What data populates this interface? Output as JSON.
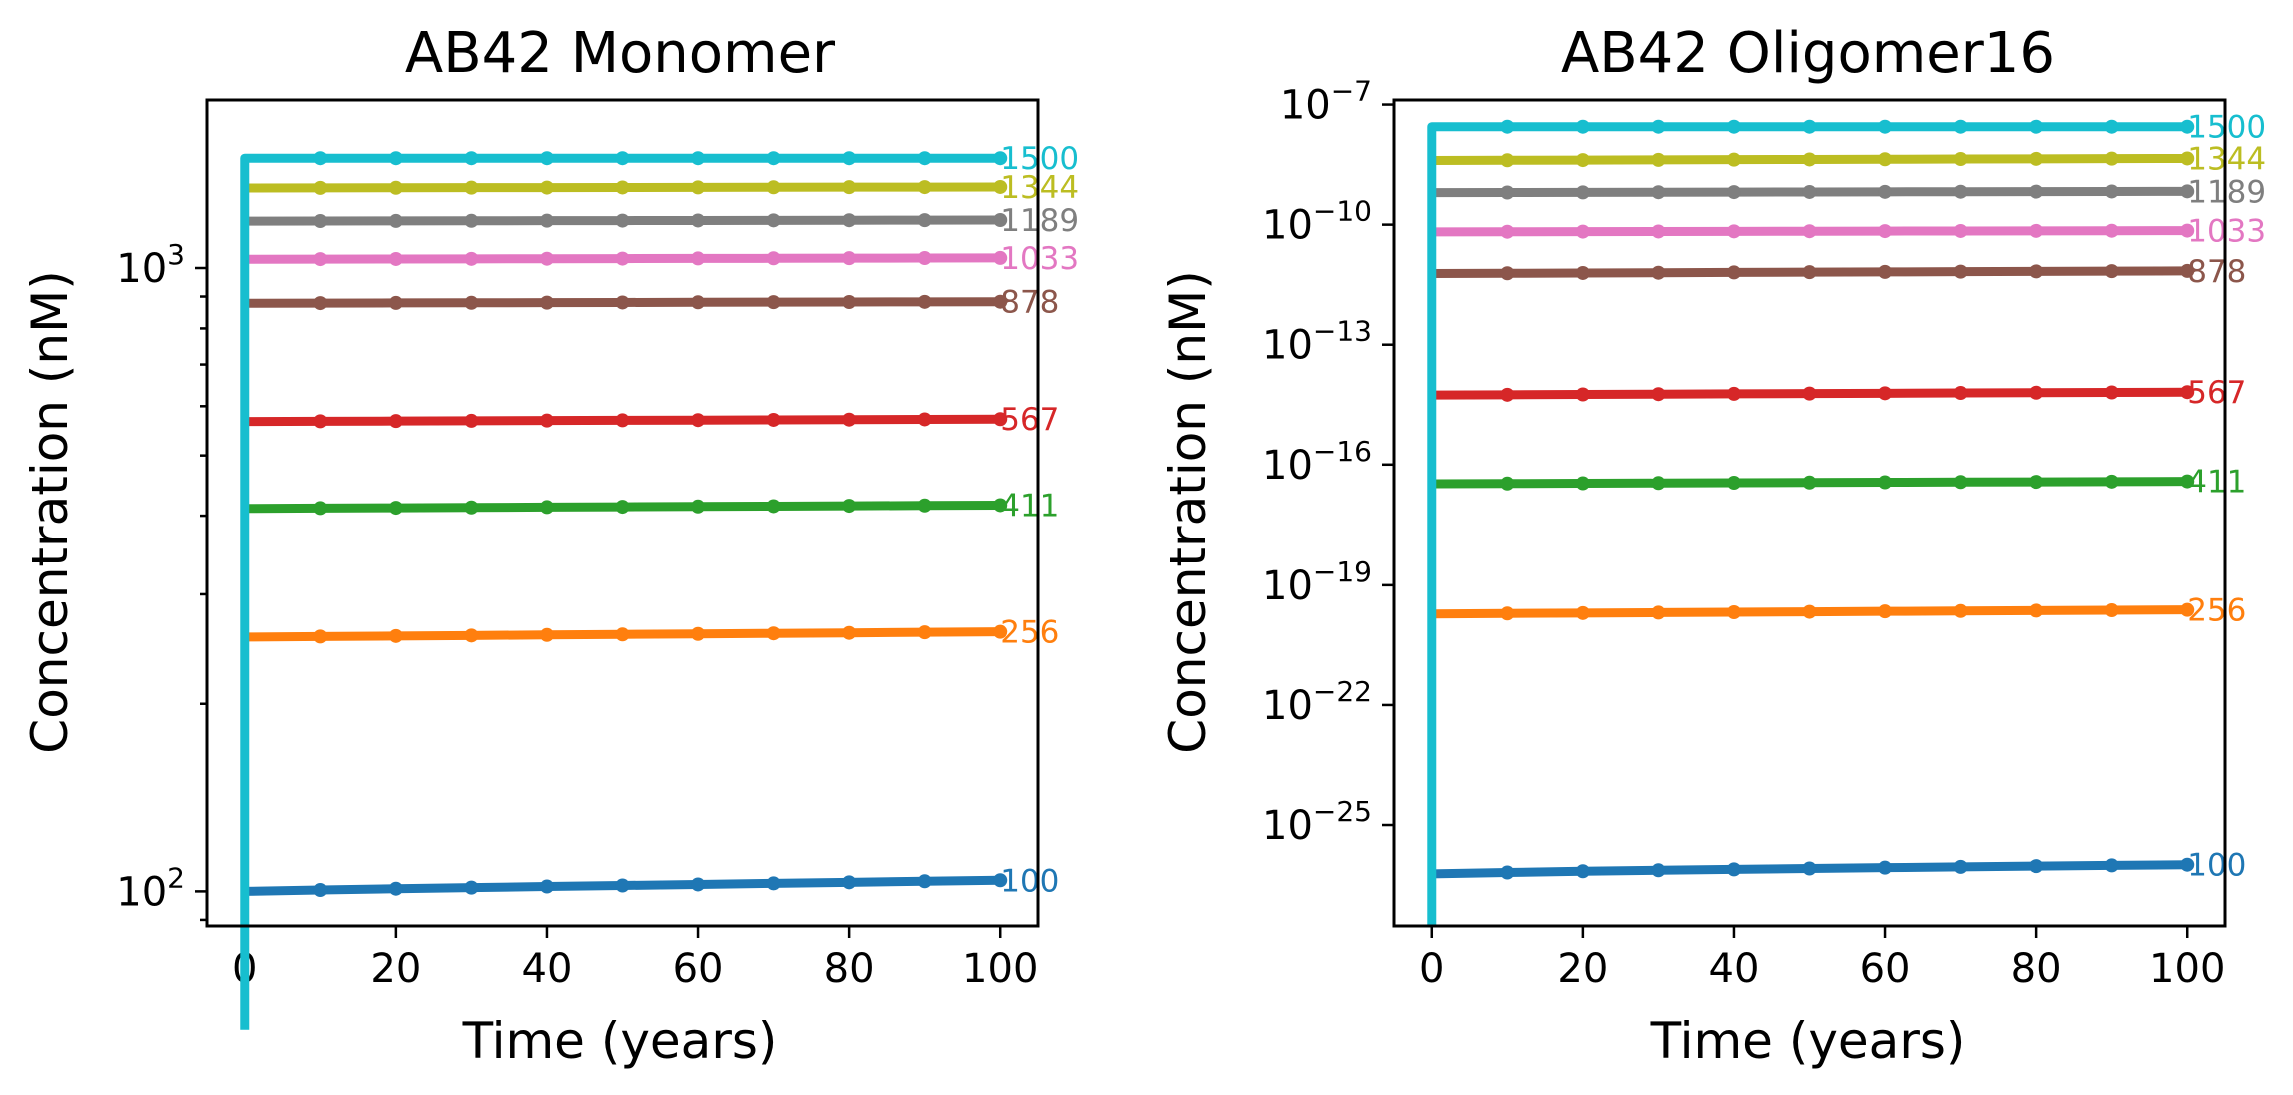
{
  "chart_data": [
    {
      "type": "line",
      "title": "AB42 Monomer",
      "xlabel": "Time (years)",
      "ylabel": "Concentration (nM)",
      "xlim": [
        -5,
        105
      ],
      "ylim": [
        88,
        1860
      ],
      "yscale": "log",
      "xticks": [
        0,
        20,
        40,
        60,
        80,
        100
      ],
      "yticks": [
        {
          "value": 100,
          "base": "10",
          "exp": "2"
        },
        {
          "value": 1000,
          "base": "10",
          "exp": "3"
        }
      ],
      "grid": false,
      "series": [
        {
          "label": "100",
          "color": "#1f77b4",
          "x": [
            0,
            10,
            20,
            30,
            40,
            50,
            60,
            70,
            80,
            90,
            100
          ],
          "y": [
            100,
            100.5,
            101,
            101.4,
            101.8,
            102.2,
            102.6,
            103,
            103.4,
            103.8,
            104.2
          ]
        },
        {
          "label": "256",
          "color": "#ff7f0e",
          "x": [
            0,
            10,
            20,
            30,
            40,
            50,
            60,
            70,
            80,
            90,
            100
          ],
          "y": [
            256,
            256.5,
            257,
            257.5,
            258,
            258.5,
            259,
            259.5,
            260,
            260.5,
            261
          ]
        },
        {
          "label": "411",
          "color": "#2ca02c",
          "x": [
            0,
            10,
            20,
            30,
            40,
            50,
            60,
            70,
            80,
            90,
            100
          ],
          "y": [
            411,
            411.5,
            412,
            412.5,
            413,
            413.5,
            414,
            414.5,
            415,
            415.5,
            416
          ]
        },
        {
          "label": "567",
          "color": "#d62728",
          "x": [
            0,
            10,
            20,
            30,
            40,
            50,
            60,
            70,
            80,
            90,
            100
          ],
          "y": [
            567,
            567.5,
            568,
            568.5,
            569,
            569.5,
            570,
            570.5,
            571,
            571.5,
            572
          ]
        },
        {
          "label": "878",
          "color": "#8c564b",
          "x": [
            0,
            10,
            20,
            30,
            40,
            50,
            60,
            70,
            80,
            90,
            100
          ],
          "y": [
            878,
            878.5,
            879,
            879.5,
            880,
            880.5,
            881,
            881.5,
            882,
            882.5,
            883
          ]
        },
        {
          "label": "1033",
          "color": "#e377c2",
          "x": [
            0,
            10,
            20,
            30,
            40,
            50,
            60,
            70,
            80,
            90,
            100
          ],
          "y": [
            1033,
            1033.5,
            1034,
            1034.5,
            1035,
            1035.5,
            1036,
            1036.5,
            1037,
            1037.5,
            1038
          ]
        },
        {
          "label": "1189",
          "color": "#7f7f7f",
          "x": [
            0,
            10,
            20,
            30,
            40,
            50,
            60,
            70,
            80,
            90,
            100
          ],
          "y": [
            1189,
            1189.5,
            1190,
            1190.5,
            1191,
            1191.5,
            1192,
            1192.5,
            1193,
            1193.5,
            1194
          ]
        },
        {
          "label": "1344",
          "color": "#bcbd22",
          "x": [
            0,
            10,
            20,
            30,
            40,
            50,
            60,
            70,
            80,
            90,
            100
          ],
          "y": [
            1344,
            1344.5,
            1345,
            1345.5,
            1346,
            1346.5,
            1347,
            1347.5,
            1348,
            1348.5,
            1349
          ]
        },
        {
          "label": "1500",
          "color": "#17becf",
          "x": [
            0,
            10,
            20,
            30,
            40,
            50,
            60,
            70,
            80,
            90,
            100
          ],
          "y": [
            1500,
            1500,
            1500,
            1500,
            1500,
            1500,
            1500,
            1500,
            1500,
            1500,
            1500
          ],
          "initial_rise_from": 60
        }
      ]
    },
    {
      "type": "line",
      "title": "AB42 Oligomer16",
      "xlabel": "Time (years)",
      "ylabel": "Concentration (nM)",
      "xlim": [
        -5,
        105
      ],
      "ylim": [
        3e-28,
        1.3e-07
      ],
      "yscale": "log",
      "xticks": [
        0,
        20,
        40,
        60,
        80,
        100
      ],
      "yticks": [
        {
          "value": 1e-07,
          "base": "10",
          "exp": "−7"
        },
        {
          "value": 1e-10,
          "base": "10",
          "exp": "−10"
        },
        {
          "value": 1e-13,
          "base": "10",
          "exp": "−13"
        },
        {
          "value": 1e-16,
          "base": "10",
          "exp": "−16"
        },
        {
          "value": 1e-19,
          "base": "10",
          "exp": "−19"
        },
        {
          "value": 1e-22,
          "base": "10",
          "exp": "−22"
        },
        {
          "value": 1e-25,
          "base": "10",
          "exp": "−25"
        }
      ],
      "grid": false,
      "series": [
        {
          "label": "100",
          "color": "#1f77b4",
          "x": [
            0,
            10,
            20,
            30,
            40,
            50,
            60,
            70,
            80,
            90,
            100
          ],
          "y": [
            6e-27,
            6.5e-27,
            7e-27,
            7.4e-27,
            7.8e-27,
            8.2e-27,
            8.6e-27,
            9e-27,
            9.4e-27,
            9.8e-27,
            1.02e-26
          ]
        },
        {
          "label": "256",
          "color": "#ff7f0e",
          "x": [
            0,
            10,
            20,
            30,
            40,
            50,
            60,
            70,
            80,
            90,
            100
          ],
          "y": [
            1.9e-20,
            1.95e-20,
            2e-20,
            2.05e-20,
            2.1e-20,
            2.15e-20,
            2.2e-20,
            2.25e-20,
            2.3e-20,
            2.35e-20,
            2.4e-20
          ]
        },
        {
          "label": "411",
          "color": "#2ca02c",
          "x": [
            0,
            10,
            20,
            30,
            40,
            50,
            60,
            70,
            80,
            90,
            100
          ],
          "y": [
            3.3e-17,
            3.35e-17,
            3.4e-17,
            3.45e-17,
            3.5e-17,
            3.55e-17,
            3.6e-17,
            3.65e-17,
            3.7e-17,
            3.75e-17,
            3.8e-17
          ]
        },
        {
          "label": "567",
          "color": "#d62728",
          "x": [
            0,
            10,
            20,
            30,
            40,
            50,
            60,
            70,
            80,
            90,
            100
          ],
          "y": [
            5.5e-15,
            5.6e-15,
            5.7e-15,
            5.8e-15,
            5.9e-15,
            6e-15,
            6.1e-15,
            6.2e-15,
            6.3e-15,
            6.4e-15,
            6.5e-15
          ]
        },
        {
          "label": "878",
          "color": "#8c564b",
          "x": [
            0,
            10,
            20,
            30,
            40,
            50,
            60,
            70,
            80,
            90,
            100
          ],
          "y": [
            6e-12,
            6.1e-12,
            6.2e-12,
            6.3e-12,
            6.4e-12,
            6.5e-12,
            6.6e-12,
            6.7e-12,
            6.8e-12,
            6.9e-12,
            7e-12
          ]
        },
        {
          "label": "1033",
          "color": "#e377c2",
          "x": [
            0,
            10,
            20,
            30,
            40,
            50,
            60,
            70,
            80,
            90,
            100
          ],
          "y": [
            6.6e-11,
            6.65e-11,
            6.7e-11,
            6.75e-11,
            6.8e-11,
            6.85e-11,
            6.9e-11,
            6.95e-11,
            7e-11,
            7.05e-11,
            7.1e-11
          ]
        },
        {
          "label": "1189",
          "color": "#7f7f7f",
          "x": [
            0,
            10,
            20,
            30,
            40,
            50,
            60,
            70,
            80,
            90,
            100
          ],
          "y": [
            6.3e-10,
            6.35e-10,
            6.4e-10,
            6.45e-10,
            6.5e-10,
            6.55e-10,
            6.6e-10,
            6.65e-10,
            6.7e-10,
            6.75e-10,
            6.8e-10
          ]
        },
        {
          "label": "1344",
          "color": "#bcbd22",
          "x": [
            0,
            10,
            20,
            30,
            40,
            50,
            60,
            70,
            80,
            90,
            100
          ],
          "y": [
            4e-09,
            4.05e-09,
            4.1e-09,
            4.15e-09,
            4.2e-09,
            4.25e-09,
            4.3e-09,
            4.35e-09,
            4.4e-09,
            4.45e-09,
            4.5e-09
          ]
        },
        {
          "label": "1500",
          "color": "#17becf",
          "x": [
            0,
            10,
            20,
            30,
            40,
            50,
            60,
            70,
            80,
            90,
            100
          ],
          "y": [
            2.8e-08,
            2.8e-08,
            2.8e-08,
            2.8e-08,
            2.8e-08,
            2.8e-08,
            2.8e-08,
            2.8e-08,
            2.8e-08,
            2.8e-08,
            2.8e-08
          ],
          "initial_rise_from": 3e-28
        }
      ]
    }
  ]
}
